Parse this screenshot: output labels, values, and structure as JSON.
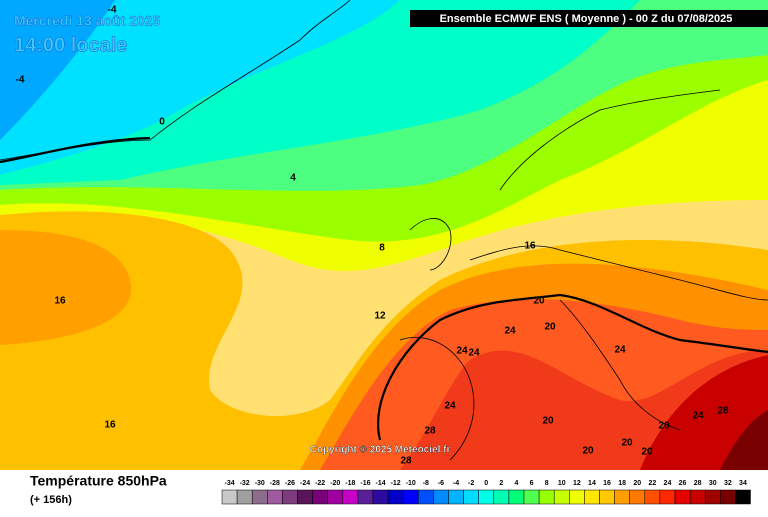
{
  "header": {
    "date": "Mercredi 13 août 2025",
    "time": "14:00 locale",
    "run": "Ensemble ECMWF ENS  ( Moyenne )  -  00 Z du 07/08/2025"
  },
  "map": {
    "copyright": "Copyright © 2025 Meteociel.fr",
    "contour_labels": [
      "-4",
      "-4",
      "0",
      "4",
      "8",
      "12",
      "16",
      "16",
      "20",
      "24",
      "20",
      "24",
      "24",
      "24",
      "24",
      "20",
      "28",
      "20",
      "20",
      "20",
      "24",
      "28",
      "20",
      "28",
      "16"
    ]
  },
  "footer": {
    "title": "Température 850hPa",
    "lead": "(+ 156h)"
  },
  "legend": {
    "ticks": [
      -34,
      -32,
      -30,
      -28,
      -26,
      -24,
      -22,
      -20,
      -18,
      -16,
      -14,
      -12,
      -10,
      -8,
      -6,
      -4,
      -2,
      0,
      2,
      4,
      6,
      8,
      10,
      12,
      14,
      16,
      18,
      20,
      22,
      24,
      26,
      28,
      30,
      32,
      34
    ],
    "colors": [
      "#c8c8c8",
      "#a0a0a0",
      "#8c6e8c",
      "#a05aa0",
      "#7d3c7d",
      "#5a145a",
      "#780078",
      "#a000a0",
      "#c800c8",
      "#5a1e96",
      "#2d0aa0",
      "#0000c8",
      "#0000ff",
      "#0050ff",
      "#008cff",
      "#00b4ff",
      "#00dcff",
      "#00ffe6",
      "#00ffb4",
      "#00ff78",
      "#50ff50",
      "#96ff00",
      "#c8ff00",
      "#f0ff00",
      "#ffe600",
      "#ffc800",
      "#ffa000",
      "#ff7800",
      "#ff5000",
      "#ff2800",
      "#e60000",
      "#c80000",
      "#a00000",
      "#780000",
      "#000000"
    ]
  }
}
